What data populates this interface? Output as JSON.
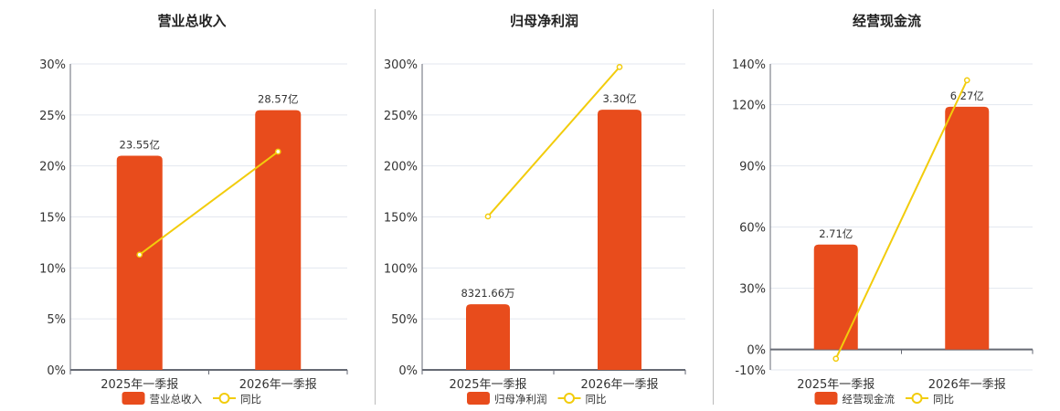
{
  "colors": {
    "bar": "#e84c1c",
    "line": "#f2cc0c",
    "grid": "#e3e7ef",
    "axis": "#666a74"
  },
  "chart_data": [
    {
      "type": "bar+line",
      "title": "营业总收入",
      "categories": [
        "2025年一季报",
        "2026年一季报"
      ],
      "bar_series": {
        "name": "营业总收入",
        "values": [
          23.55,
          28.57
        ],
        "labels": [
          "23.55亿",
          "28.57亿"
        ]
      },
      "line_series": {
        "name": "同比",
        "values": [
          11.3,
          21.4
        ]
      },
      "y_ticks": [
        "0%",
        "5%",
        "10%",
        "15%",
        "20%",
        "25%",
        "30%"
      ],
      "ylim": [
        0,
        30
      ],
      "grid": true,
      "legend": "bottom"
    },
    {
      "type": "bar+line",
      "title": "归母净利润",
      "categories": [
        "2025年一季报",
        "2026年一季报"
      ],
      "bar_series": {
        "name": "归母净利润",
        "values": [
          0.832166,
          3.3
        ],
        "labels": [
          "8321.66万",
          "3.30亿"
        ]
      },
      "line_series": {
        "name": "同比",
        "values": [
          150.5,
          297
        ]
      },
      "y_ticks": [
        "0%",
        "50%",
        "100%",
        "150%",
        "200%",
        "250%",
        "300%"
      ],
      "ylim": [
        0,
        300
      ],
      "grid": true,
      "legend": "bottom"
    },
    {
      "type": "bar+line",
      "title": "经营现金流",
      "categories": [
        "2025年一季报",
        "2026年一季报"
      ],
      "bar_series": {
        "name": "经营现金流",
        "values": [
          2.71,
          6.27
        ],
        "labels": [
          "2.71亿",
          "6.27亿"
        ]
      },
      "line_series": {
        "name": "同比",
        "values": [
          -4.5,
          132
        ]
      },
      "y_ticks": [
        "-10%",
        "0%",
        "30%",
        "60%",
        "90%",
        "120%",
        "140%"
      ],
      "y_tick_values": [
        -10,
        0,
        30,
        60,
        90,
        120,
        140
      ],
      "ylim": [
        -10,
        140
      ],
      "grid": true,
      "legend": "bottom"
    }
  ]
}
